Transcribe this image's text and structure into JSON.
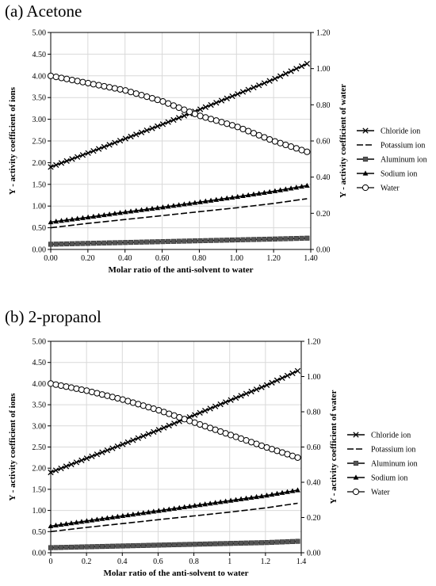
{
  "chart_data": [
    {
      "panel_label": "(a) Acetone",
      "type": "line",
      "xlabel": "Molar ratio of the anti-solvent to water",
      "ylabel": "Y - activity coefficient of ions",
      "y2label": "Y - activity coefficient of water",
      "xlim": [
        0,
        1.4
      ],
      "ylim": [
        0,
        5
      ],
      "y2lim": [
        0,
        1.2
      ],
      "x_ticks": [
        "0.00",
        "0.20",
        "0.40",
        "0.60",
        "0.80",
        "1.00",
        "1.20",
        "1.40"
      ],
      "y_ticks": [
        "0.00",
        "0.50",
        "1.00",
        "1.50",
        "2.00",
        "2.50",
        "3.00",
        "3.50",
        "4.00",
        "4.50",
        "5.00"
      ],
      "y2_ticks": [
        "0.00",
        "0.20",
        "0.40",
        "0.60",
        "0.80",
        "1.00",
        "1.20"
      ],
      "legend_position": "right",
      "series": [
        {
          "name": "Chloride ion",
          "axis": "left",
          "x": [
            0,
            0.2,
            0.4,
            0.6,
            0.8,
            1.0,
            1.2,
            1.38
          ],
          "values": [
            1.9,
            2.22,
            2.55,
            2.88,
            3.22,
            3.57,
            3.92,
            4.28
          ]
        },
        {
          "name": "Potassium ion",
          "axis": "left",
          "x": [
            0,
            0.2,
            0.4,
            0.6,
            0.8,
            1.0,
            1.2,
            1.38
          ],
          "values": [
            0.5,
            0.6,
            0.69,
            0.78,
            0.87,
            0.96,
            1.06,
            1.17
          ]
        },
        {
          "name": "Aluminum ion",
          "axis": "left",
          "x": [
            0,
            0.2,
            0.4,
            0.6,
            0.8,
            1.0,
            1.2,
            1.38
          ],
          "values": [
            0.12,
            0.14,
            0.16,
            0.18,
            0.2,
            0.22,
            0.24,
            0.26
          ]
        },
        {
          "name": "Sodium ion",
          "axis": "left",
          "x": [
            0,
            0.2,
            0.4,
            0.6,
            0.8,
            1.0,
            1.2,
            1.38
          ],
          "values": [
            0.63,
            0.74,
            0.86,
            0.97,
            1.09,
            1.21,
            1.34,
            1.47
          ]
        },
        {
          "name": "Water",
          "axis": "right",
          "x": [
            0,
            0.2,
            0.4,
            0.6,
            0.8,
            1.0,
            1.2,
            1.38
          ],
          "values": [
            0.96,
            0.92,
            0.88,
            0.82,
            0.74,
            0.68,
            0.6,
            0.54
          ]
        }
      ]
    },
    {
      "panel_label": "(b) 2-propanol",
      "type": "line",
      "xlabel": "Molar ratio of the anti-solvent to water",
      "ylabel": "Y - activity coefficient of ions",
      "y2label": "Y - activity coefficient of water",
      "xlim": [
        0,
        1.4
      ],
      "ylim": [
        0,
        5
      ],
      "y2lim": [
        0,
        1.2
      ],
      "x_ticks": [
        "0",
        "0.2",
        "0.4",
        "0.6",
        "0.8",
        "1",
        "1.2",
        "1.4"
      ],
      "y_ticks": [
        "0.00",
        "0.50",
        "1.00",
        "1.50",
        "2.00",
        "2.50",
        "3.00",
        "3.50",
        "4.00",
        "4.50",
        "5.00"
      ],
      "y2_ticks": [
        "0.00",
        "0.20",
        "0.40",
        "0.60",
        "0.80",
        "1.00",
        "1.20"
      ],
      "legend_position": "right",
      "series": [
        {
          "name": "Chloride ion",
          "axis": "left",
          "x": [
            0,
            0.2,
            0.4,
            0.6,
            0.8,
            1.0,
            1.2,
            1.38
          ],
          "values": [
            1.9,
            2.23,
            2.56,
            2.9,
            3.25,
            3.6,
            3.95,
            4.3
          ]
        },
        {
          "name": "Potassium ion",
          "axis": "left",
          "x": [
            0,
            0.2,
            0.4,
            0.6,
            0.8,
            1.0,
            1.2,
            1.38
          ],
          "values": [
            0.5,
            0.6,
            0.69,
            0.78,
            0.87,
            0.96,
            1.06,
            1.17
          ]
        },
        {
          "name": "Aluminum ion",
          "axis": "left",
          "x": [
            0,
            0.2,
            0.4,
            0.6,
            0.8,
            1.0,
            1.2,
            1.38
          ],
          "values": [
            0.12,
            0.14,
            0.16,
            0.18,
            0.2,
            0.22,
            0.24,
            0.27
          ]
        },
        {
          "name": "Sodium ion",
          "axis": "left",
          "x": [
            0,
            0.2,
            0.4,
            0.6,
            0.8,
            1.0,
            1.2,
            1.38
          ],
          "values": [
            0.63,
            0.75,
            0.87,
            0.99,
            1.11,
            1.23,
            1.35,
            1.48
          ]
        },
        {
          "name": "Water",
          "axis": "right",
          "x": [
            0,
            0.2,
            0.4,
            0.6,
            0.8,
            1.0,
            1.2,
            1.38
          ],
          "values": [
            0.96,
            0.92,
            0.87,
            0.81,
            0.74,
            0.67,
            0.6,
            0.54
          ]
        }
      ]
    }
  ]
}
